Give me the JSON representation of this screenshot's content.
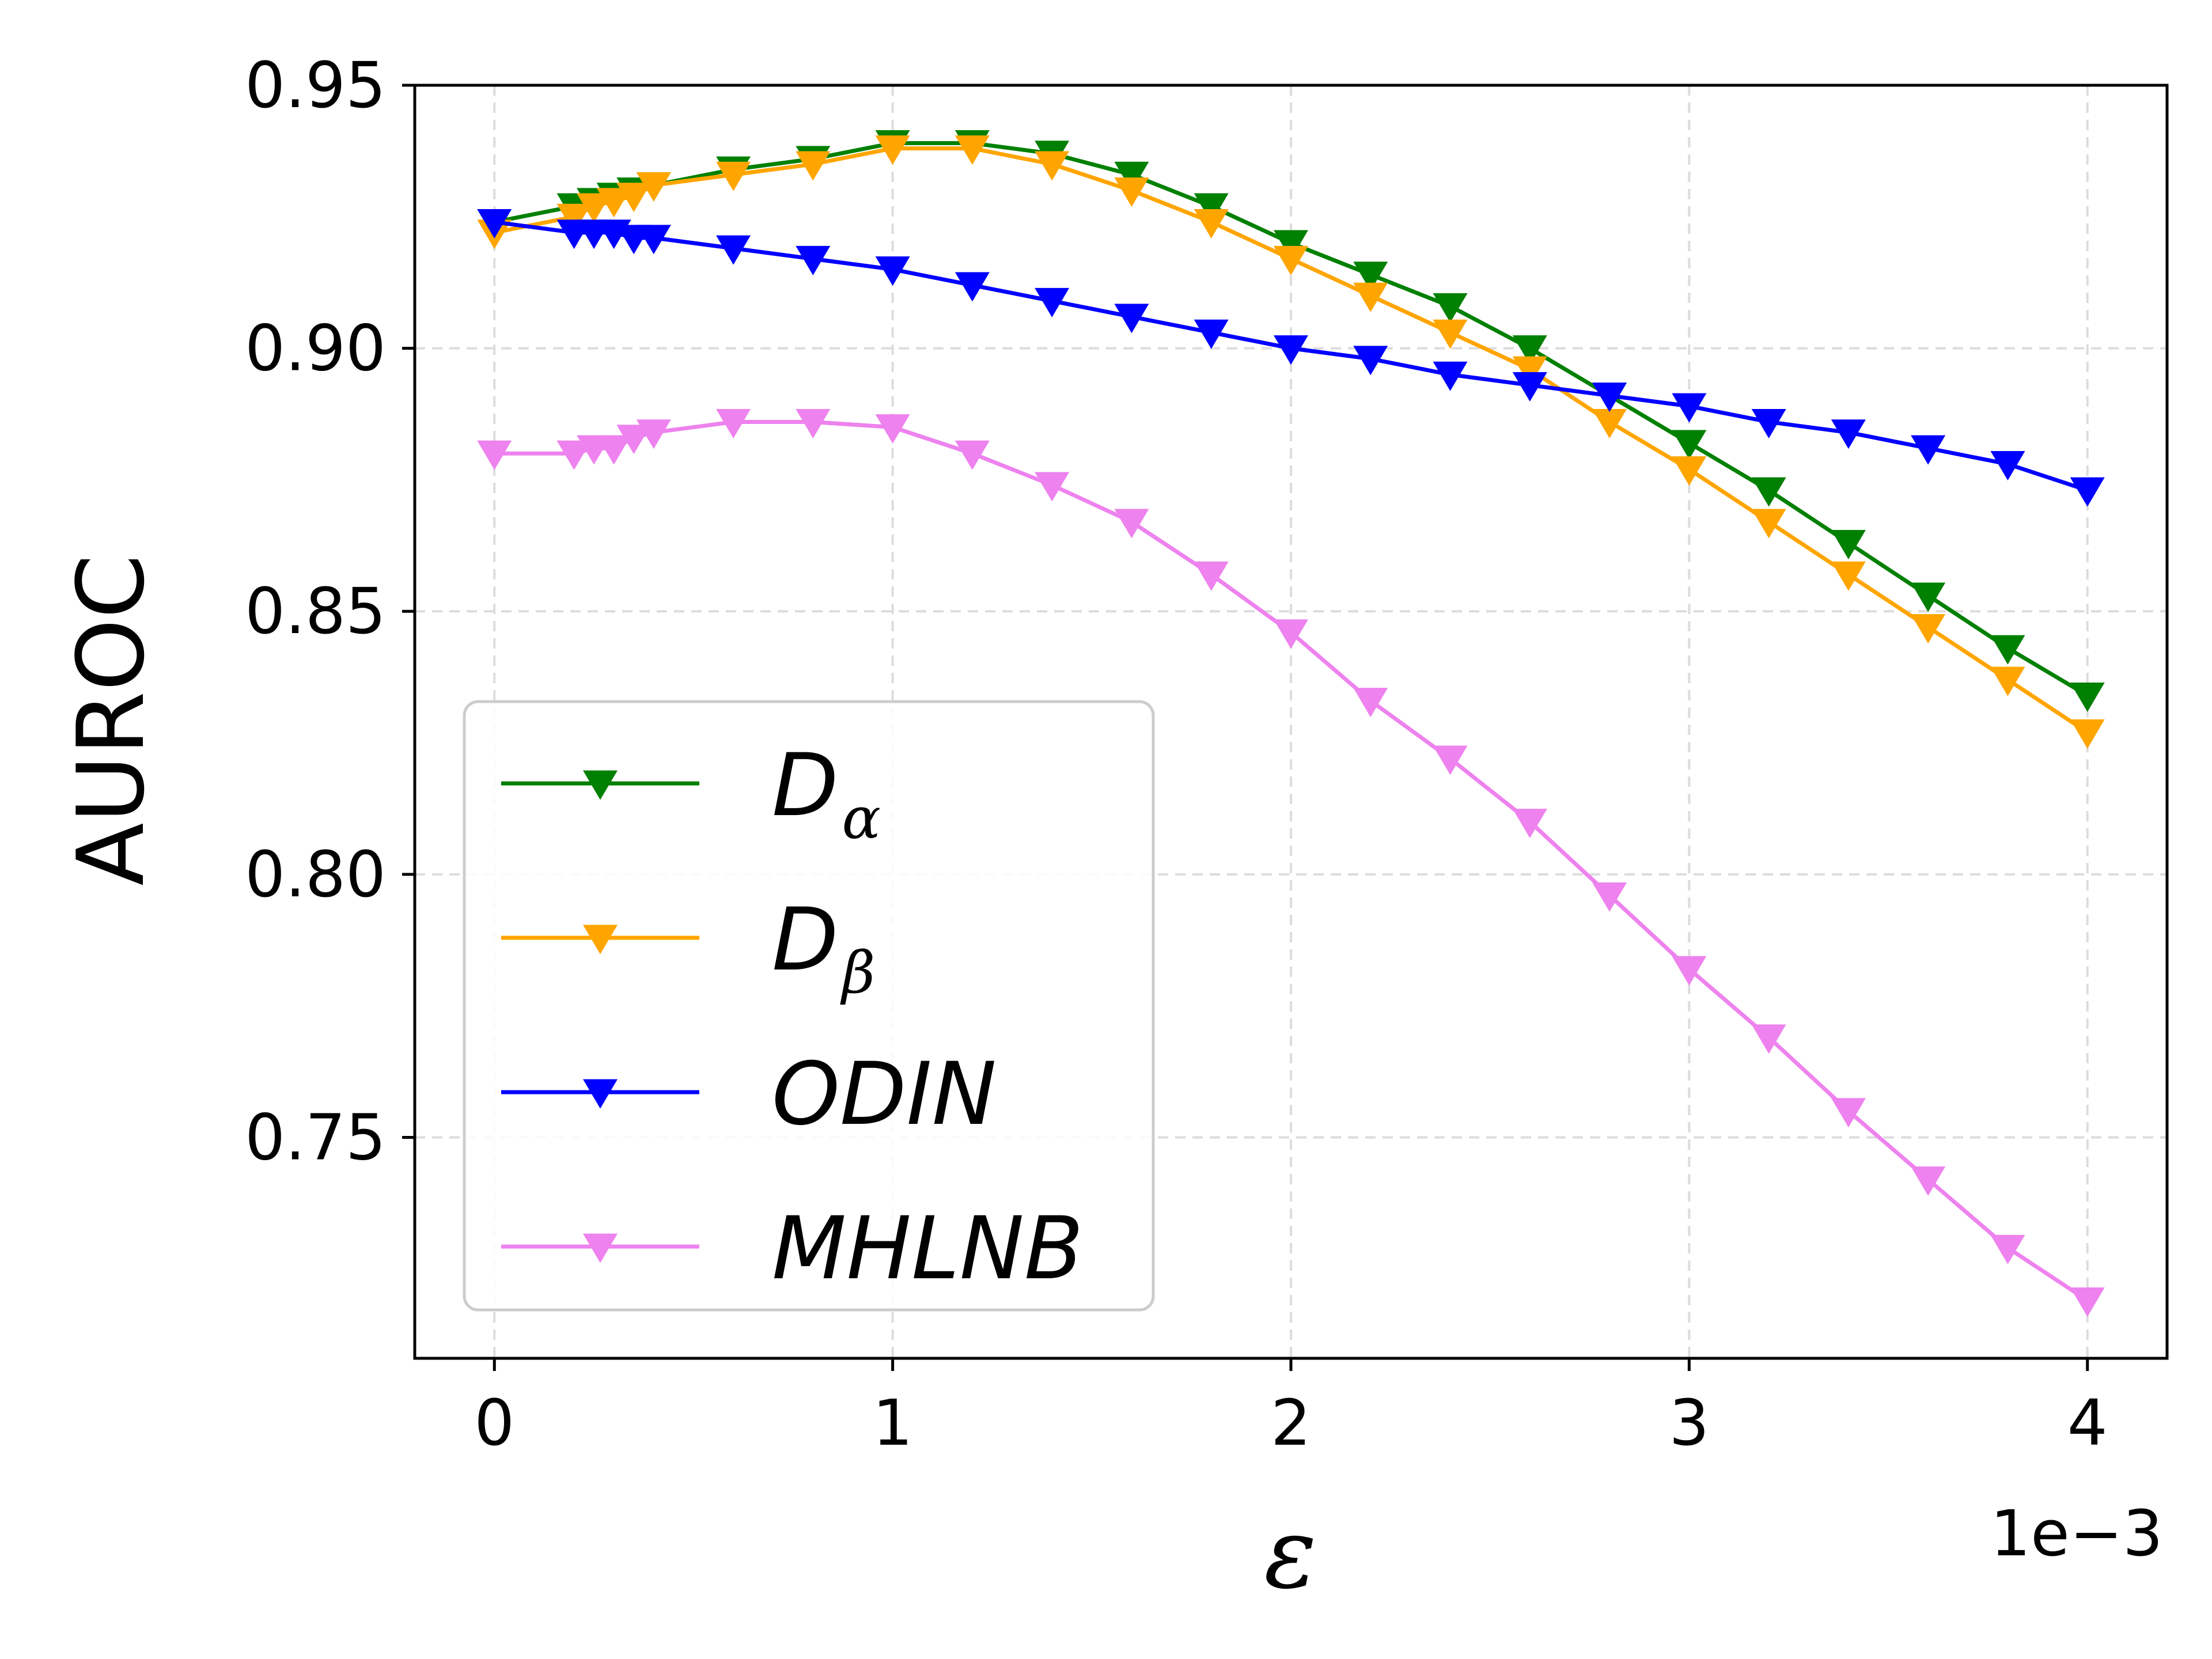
{
  "chart_data": {
    "type": "line",
    "xlabel": "ε",
    "ylabel": "AUROC",
    "x_offset_label": "1e−3",
    "xlim": [
      -0.2,
      4.2
    ],
    "ylim": [
      0.708,
      0.95
    ],
    "xticks": [
      0,
      1,
      2,
      3,
      4
    ],
    "xtick_labels": [
      "0",
      "1",
      "2",
      "3",
      "4"
    ],
    "yticks": [
      0.75,
      0.8,
      0.85,
      0.9,
      0.95
    ],
    "ytick_labels": [
      "0.75",
      "0.80",
      "0.85",
      "0.90",
      "0.95"
    ],
    "grid": true,
    "legend_position": "lower-left",
    "x": [
      0,
      0.2,
      0.25,
      0.3,
      0.35,
      0.4,
      0.6,
      0.8,
      1.0,
      1.2,
      1.4,
      1.6,
      1.8,
      2.0,
      2.2,
      2.4,
      2.6,
      2.8,
      3.0,
      3.2,
      3.4,
      3.6,
      3.8,
      4.0
    ],
    "series": [
      {
        "name": "D",
        "subscript": "α",
        "color": "#008000",
        "values": [
          0.924,
          0.927,
          0.928,
          0.929,
          0.93,
          0.931,
          0.934,
          0.936,
          0.939,
          0.939,
          0.937,
          0.933,
          0.927,
          0.92,
          0.914,
          0.908,
          0.9,
          0.891,
          0.882,
          0.873,
          0.863,
          0.853,
          0.843,
          0.834
        ]
      },
      {
        "name": "D",
        "subscript": "β",
        "color": "#FFA500",
        "values": [
          0.922,
          0.925,
          0.927,
          0.928,
          0.929,
          0.931,
          0.933,
          0.935,
          0.938,
          0.938,
          0.935,
          0.93,
          0.924,
          0.917,
          0.91,
          0.903,
          0.896,
          0.886,
          0.877,
          0.867,
          0.857,
          0.847,
          0.837,
          0.827
        ]
      },
      {
        "name": "ODIN",
        "subscript": "",
        "color": "#0000FF",
        "values": [
          0.924,
          0.922,
          0.922,
          0.922,
          0.921,
          0.921,
          0.919,
          0.917,
          0.915,
          0.912,
          0.909,
          0.906,
          0.903,
          0.9,
          0.898,
          0.895,
          0.893,
          0.891,
          0.889,
          0.886,
          0.884,
          0.881,
          0.878,
          0.873
        ]
      },
      {
        "name": "MHLNB",
        "subscript": "",
        "color": "#EE82EE",
        "values": [
          0.88,
          0.88,
          0.881,
          0.881,
          0.883,
          0.884,
          0.886,
          0.886,
          0.885,
          0.88,
          0.874,
          0.867,
          0.857,
          0.846,
          0.833,
          0.822,
          0.81,
          0.796,
          0.782,
          0.769,
          0.755,
          0.742,
          0.729,
          0.719
        ]
      }
    ]
  }
}
